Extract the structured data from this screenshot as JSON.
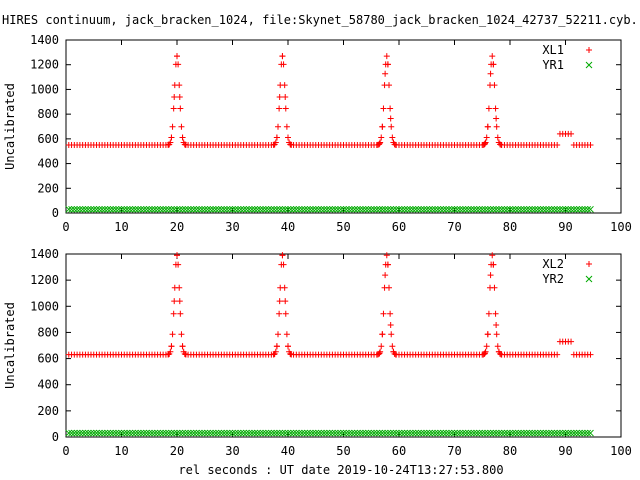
{
  "title": "HIRES continuum, jack_bracken_1024, file:Skynet_58780_jack_bracken_1024_42737_52211.cyb.",
  "xlabel": "rel seconds : UT date 2019-10-24T13:27:53.800",
  "colors": {
    "series1": "#ff0000",
    "series2": "#00aa00",
    "axis": "#000000"
  },
  "chart_data": [
    {
      "type": "scatter",
      "ylabel": "Uncalibrated",
      "xlim": [
        0,
        100
      ],
      "ylim": [
        0,
        1400
      ],
      "xticks": [
        "0",
        "10",
        "20",
        "30",
        "40",
        "50",
        "60",
        "70",
        "80",
        "90",
        "100"
      ],
      "yticks": [
        "0",
        "200",
        "400",
        "600",
        "800",
        "1000",
        "1200",
        "1400"
      ],
      "legend_position": "top-right",
      "series": [
        {
          "name": "XL1",
          "marker": "plus",
          "baseline": 550,
          "peaks": [
            {
              "x": 20,
              "y": 1270
            },
            {
              "x": 39,
              "y": 1270
            },
            {
              "x": 57.8,
              "y": 1270
            },
            {
              "x": 76.8,
              "y": 1270
            }
          ],
          "steps": [
            {
              "x_from": 88.6,
              "x_to": 91.2,
              "y": 640
            }
          ],
          "x_range": [
            0.5,
            94.5
          ]
        },
        {
          "name": "YR1",
          "marker": "cross",
          "baseline": 30,
          "peaks": [],
          "steps": [],
          "x_range": [
            0.5,
            94.5
          ]
        }
      ]
    },
    {
      "type": "scatter",
      "ylabel": "Uncalibrated",
      "xlim": [
        0,
        100
      ],
      "ylim": [
        0,
        1400
      ],
      "xticks": [
        "0",
        "10",
        "20",
        "30",
        "40",
        "50",
        "60",
        "70",
        "80",
        "90",
        "100"
      ],
      "yticks": [
        "0",
        "200",
        "400",
        "600",
        "800",
        "1000",
        "1200",
        "1400"
      ],
      "legend_position": "top-right",
      "series": [
        {
          "name": "XL2",
          "marker": "plus",
          "baseline": 630,
          "peaks": [
            {
              "x": 20,
              "y": 1390
            },
            {
              "x": 39,
              "y": 1390
            },
            {
              "x": 57.8,
              "y": 1390
            },
            {
              "x": 76.8,
              "y": 1390
            }
          ],
          "steps": [
            {
              "x_from": 88.6,
              "x_to": 91.2,
              "y": 730
            }
          ],
          "x_range": [
            0.5,
            94.5
          ]
        },
        {
          "name": "YR2",
          "marker": "cross",
          "baseline": 30,
          "peaks": [],
          "steps": [],
          "x_range": [
            0.5,
            94.5
          ]
        }
      ]
    }
  ]
}
